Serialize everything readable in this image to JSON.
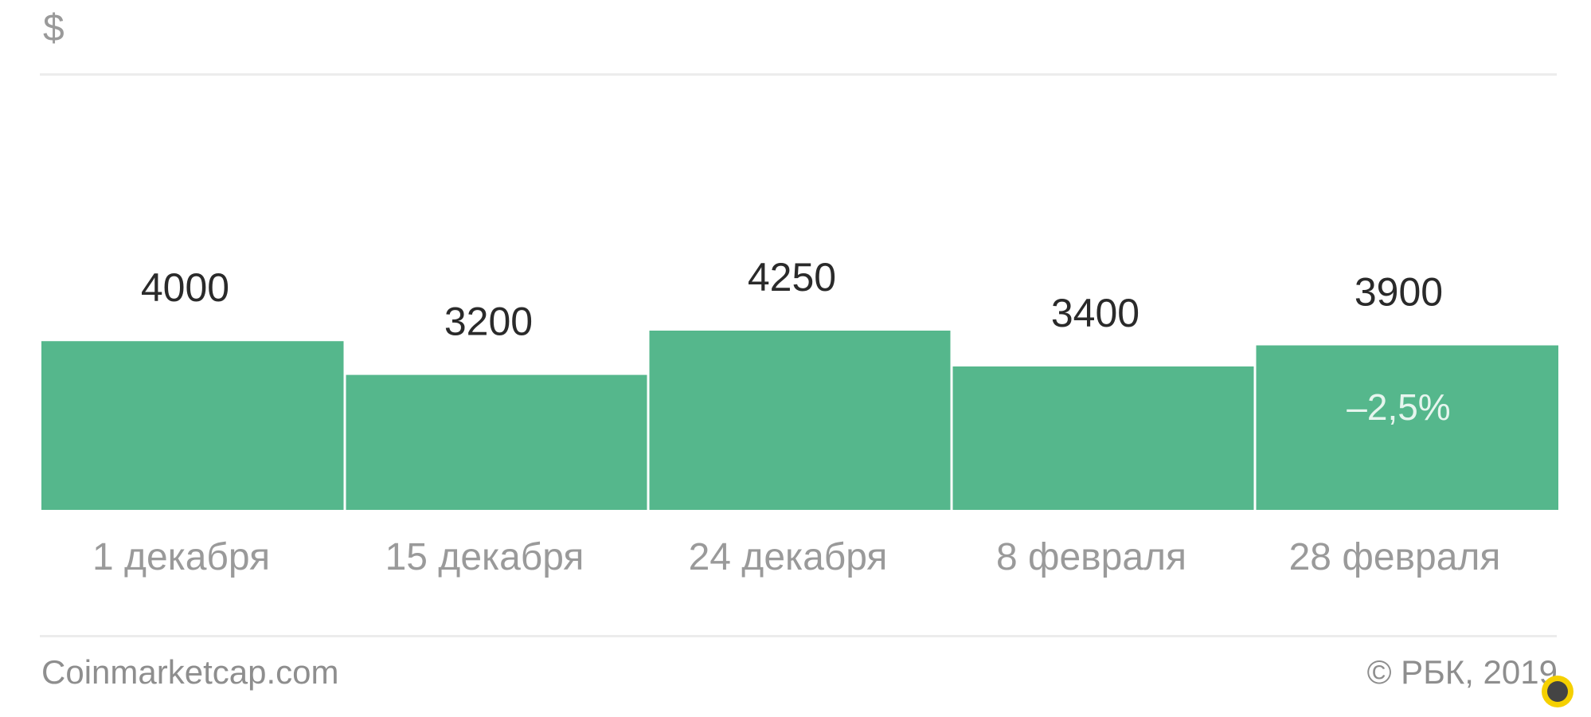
{
  "chart_data": {
    "type": "bar",
    "unit_label": "$",
    "categories": [
      "1 декабря",
      "15 декабря",
      "24 декабря",
      "8 февраля",
      "28 февраля"
    ],
    "values": [
      4000,
      3200,
      4250,
      3400,
      3900
    ],
    "value_labels": [
      "4000",
      "3200",
      "4250",
      "3400",
      "3900"
    ],
    "annotation": {
      "category_index": 4,
      "text": "–2,5%"
    },
    "ylim": [
      0,
      4250
    ],
    "grid": false,
    "bar_color": "#55b78c",
    "annotation_color": "#e6f5ee"
  },
  "footer": {
    "source": "Coinmarketcap.com",
    "copyright": "© РБК, 2019"
  },
  "watermark": {
    "icon": "cancer-zodiac-badge-icon",
    "color": "#f5d000"
  }
}
